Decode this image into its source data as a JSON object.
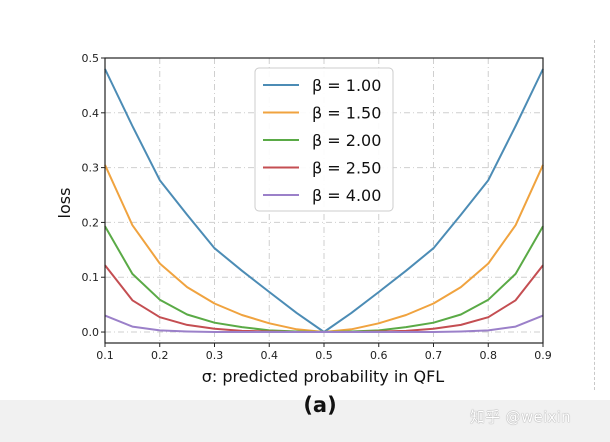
{
  "chart_data": {
    "type": "line",
    "xlabel": "σ: predicted probability in QFL",
    "ylabel": "loss",
    "xlim": [
      0.1,
      0.9
    ],
    "ylim": [
      -0.02,
      0.5
    ],
    "xticks": [
      "0.1",
      "0.2",
      "0.3",
      "0.4",
      "0.5",
      "0.6",
      "0.7",
      "0.8",
      "0.9"
    ],
    "yticks": [
      "0.0",
      "0.1",
      "0.2",
      "0.3",
      "0.4",
      "0.5"
    ],
    "grid": true,
    "legend_position": "top-center",
    "x": [
      0.1,
      0.15,
      0.2,
      0.25,
      0.3,
      0.35,
      0.4,
      0.45,
      0.5,
      0.55,
      0.6,
      0.65,
      0.7,
      0.75,
      0.8,
      0.85,
      0.9
    ],
    "series": [
      {
        "name": "β = 1.00",
        "color": "#4c8cb5",
        "values": [
          0.48,
          0.376,
          0.277,
          0.214,
          0.153,
          0.112,
          0.073,
          0.035,
          0.0,
          0.035,
          0.073,
          0.112,
          0.153,
          0.214,
          0.277,
          0.376,
          0.48
        ]
      },
      {
        "name": "β = 1.50",
        "color": "#f0a33f",
        "values": [
          0.305,
          0.195,
          0.125,
          0.082,
          0.052,
          0.031,
          0.016,
          0.005,
          0.0,
          0.005,
          0.016,
          0.031,
          0.052,
          0.082,
          0.125,
          0.195,
          0.305
        ]
      },
      {
        "name": "β = 2.00",
        "color": "#5aaa46",
        "values": [
          0.193,
          0.106,
          0.059,
          0.032,
          0.017,
          0.009,
          0.003,
          0.001,
          0.0,
          0.001,
          0.003,
          0.009,
          0.017,
          0.032,
          0.059,
          0.106,
          0.193
        ]
      },
      {
        "name": "β = 2.50",
        "color": "#c44e52",
        "values": [
          0.122,
          0.058,
          0.027,
          0.013,
          0.006,
          0.002,
          0.001,
          0.0,
          0.0,
          0.0,
          0.001,
          0.002,
          0.006,
          0.013,
          0.027,
          0.058,
          0.122
        ]
      },
      {
        "name": "β = 4.00",
        "color": "#9b80c9",
        "values": [
          0.03,
          0.01,
          0.003,
          0.001,
          0.0,
          0.0,
          0.0,
          0.0,
          0.0,
          0.0,
          0.0,
          0.0,
          0.0,
          0.001,
          0.003,
          0.01,
          0.03
        ]
      }
    ]
  },
  "caption": "(a)",
  "watermark": "知乎 @weixin"
}
